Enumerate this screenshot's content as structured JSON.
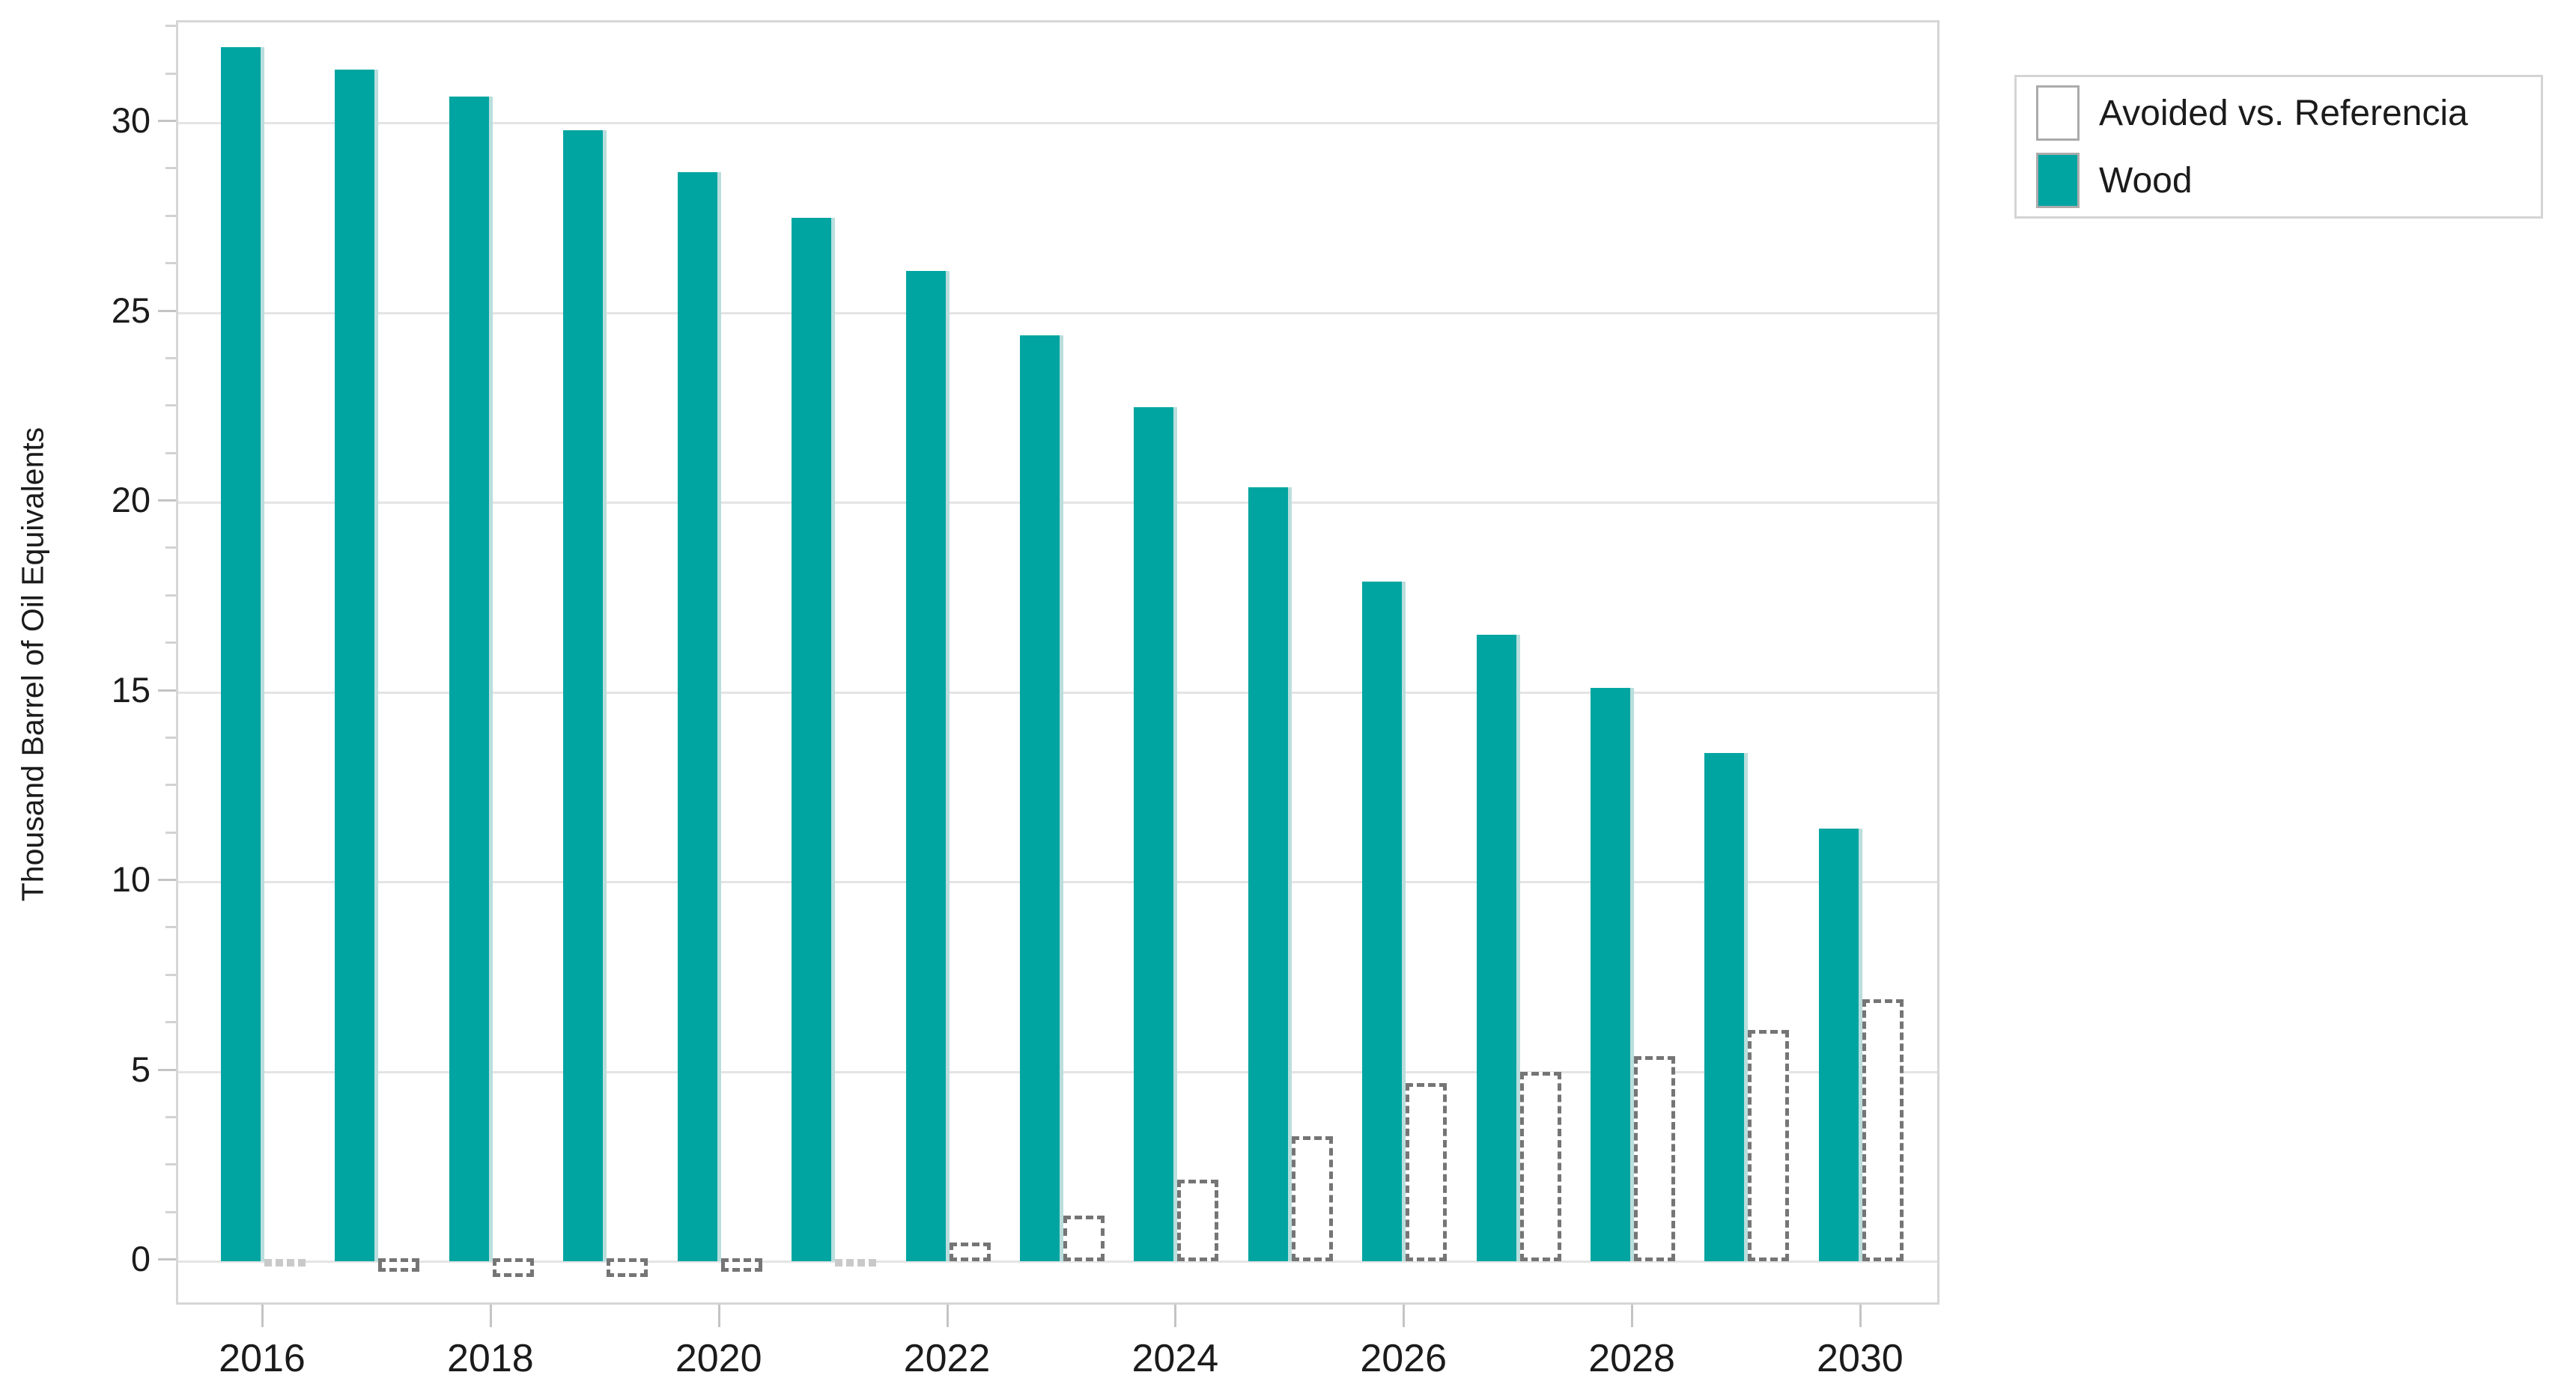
{
  "y_axis": {
    "title": "Thousand Barrel of Oil Equivalents",
    "tick_labels": [
      "0",
      "5",
      "10",
      "15",
      "20",
      "25",
      "30"
    ]
  },
  "x_axis": {
    "tick_labels": [
      "2016",
      "2018",
      "2020",
      "2022",
      "2024",
      "2026",
      "2028",
      "2030"
    ]
  },
  "legend": {
    "items": [
      {
        "label": "Avoided vs. Referencia",
        "swatch": "outline"
      },
      {
        "label": "Wood",
        "swatch": "solid"
      }
    ]
  },
  "colors": {
    "teal": "#00a5a1",
    "teal_edge": "#b9dedd",
    "dashed_outline": "#757575",
    "dashed_outline_faint": "#c9c9c9",
    "grid": "#e4e4e4",
    "axis_border": "#d6d6d6",
    "tick": "#c4c4c4",
    "text": "#1b1b1b"
  },
  "chart_data": {
    "type": "bar",
    "categories": [
      2016,
      2017,
      2018,
      2019,
      2020,
      2021,
      2022,
      2023,
      2024,
      2025,
      2026,
      2027,
      2028,
      2029,
      2030
    ],
    "series": [
      {
        "name": "Wood",
        "values": [
          32.0,
          31.4,
          30.7,
          29.8,
          28.7,
          27.5,
          26.1,
          24.4,
          22.5,
          20.4,
          17.9,
          16.5,
          15.1,
          13.4,
          11.4
        ]
      },
      {
        "name": "Avoided vs. Referencia",
        "values": [
          0.05,
          -0.35,
          -0.5,
          -0.5,
          -0.35,
          0.05,
          0.5,
          1.2,
          2.15,
          3.3,
          4.7,
          5.0,
          5.4,
          6.1,
          6.9
        ]
      }
    ],
    "title": "",
    "xlabel": "",
    "ylabel": "Thousand Barrel of Oil Equivalents",
    "ylim": [
      -1.2,
      32.6
    ],
    "y_major_ticks": [
      0,
      5,
      10,
      15,
      20,
      25,
      30
    ],
    "y_minor_tick_step": 1.25,
    "grid": true,
    "legend_position": "top-right",
    "x_labeled_categories": [
      2016,
      2018,
      2020,
      2022,
      2024,
      2026,
      2028,
      2030
    ]
  }
}
